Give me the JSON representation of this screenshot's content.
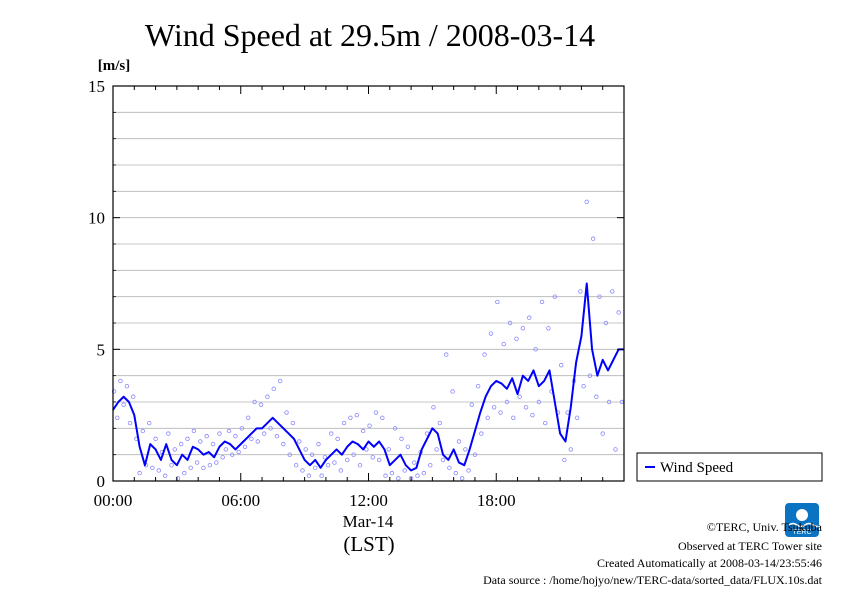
{
  "chart_data": {
    "type": "scatter",
    "title": "Wind Speed at 29.5m / 2008-03-14",
    "ylabel": "[m/s]",
    "xlabel": "(LST)",
    "x_date_label": "Mar-14",
    "ylim": [
      0,
      15
    ],
    "y_ticks": [
      "0",
      "5",
      "10",
      "15"
    ],
    "x_ticks": [
      "00:00",
      "06:00",
      "12:00",
      "18:00"
    ],
    "x_tick_hours": [
      0,
      6,
      12,
      18
    ],
    "xlim_hours": [
      0,
      24
    ],
    "grid": "horizontal",
    "legend": "bottom-right outside plot",
    "series": [
      {
        "name": "Wind Speed",
        "kind": "line",
        "color": "#0000ff",
        "x_hours": [
          0.0,
          0.25,
          0.5,
          0.75,
          1.0,
          1.25,
          1.5,
          1.75,
          2.0,
          2.25,
          2.5,
          2.75,
          3.0,
          3.25,
          3.5,
          3.75,
          4.0,
          4.25,
          4.5,
          4.75,
          5.0,
          5.25,
          5.5,
          5.75,
          6.0,
          6.25,
          6.5,
          6.75,
          7.0,
          7.25,
          7.5,
          7.75,
          8.0,
          8.25,
          8.5,
          8.75,
          9.0,
          9.25,
          9.5,
          9.75,
          10.0,
          10.25,
          10.5,
          10.75,
          11.0,
          11.25,
          11.5,
          11.75,
          12.0,
          12.25,
          12.5,
          12.75,
          13.0,
          13.25,
          13.5,
          13.75,
          14.0,
          14.25,
          14.5,
          14.75,
          15.0,
          15.25,
          15.5,
          15.75,
          16.0,
          16.25,
          16.5,
          16.75,
          17.0,
          17.25,
          17.5,
          17.75,
          18.0,
          18.25,
          18.5,
          18.75,
          19.0,
          19.25,
          19.5,
          19.75,
          20.0,
          20.25,
          20.5,
          20.75,
          21.0,
          21.25,
          21.5,
          21.75,
          22.0,
          22.25,
          22.5,
          22.75,
          23.0,
          23.25,
          23.5,
          23.75,
          24.0
        ],
        "values": [
          2.7,
          3.0,
          3.2,
          3.0,
          2.5,
          1.3,
          0.6,
          1.4,
          1.2,
          0.8,
          1.4,
          0.8,
          0.6,
          1.0,
          0.8,
          1.3,
          1.2,
          1.0,
          1.1,
          0.9,
          1.3,
          1.5,
          1.4,
          1.2,
          1.4,
          1.6,
          1.8,
          2.0,
          2.0,
          2.2,
          2.4,
          2.2,
          2.0,
          1.8,
          1.6,
          1.2,
          0.8,
          0.6,
          0.8,
          0.5,
          0.8,
          1.0,
          1.2,
          1.0,
          1.3,
          1.5,
          1.4,
          1.2,
          1.5,
          1.3,
          1.5,
          1.2,
          0.6,
          0.8,
          1.0,
          0.6,
          0.4,
          0.5,
          1.2,
          1.6,
          2.0,
          1.8,
          1.0,
          0.8,
          1.2,
          0.7,
          0.6,
          1.2,
          1.9,
          2.6,
          3.2,
          3.6,
          3.8,
          3.7,
          3.5,
          3.9,
          3.3,
          4.0,
          3.8,
          4.2,
          3.6,
          3.8,
          4.2,
          3.0,
          1.8,
          1.5,
          2.8,
          4.5,
          5.5,
          7.5,
          5.0,
          4.0,
          4.6,
          4.2,
          4.6,
          5.0,
          5.0
        ]
      },
      {
        "name": "",
        "kind": "scatter",
        "color": "#8888ff",
        "x_hours": [
          0.05,
          0.2,
          0.35,
          0.5,
          0.65,
          0.8,
          0.95,
          1.1,
          1.25,
          1.4,
          1.55,
          1.7,
          1.85,
          2.0,
          2.15,
          2.3,
          2.45,
          2.6,
          2.75,
          2.9,
          3.05,
          3.2,
          3.35,
          3.5,
          3.65,
          3.8,
          3.95,
          4.1,
          4.25,
          4.4,
          4.55,
          4.7,
          4.85,
          5.0,
          5.15,
          5.3,
          5.45,
          5.6,
          5.75,
          5.9,
          6.05,
          6.2,
          6.35,
          6.5,
          6.65,
          6.8,
          6.95,
          7.1,
          7.25,
          7.4,
          7.55,
          7.7,
          7.85,
          8.0,
          8.15,
          8.3,
          8.45,
          8.6,
          8.75,
          8.9,
          9.05,
          9.2,
          9.35,
          9.5,
          9.65,
          9.8,
          9.95,
          10.1,
          10.25,
          10.4,
          10.55,
          10.7,
          10.85,
          11.0,
          11.15,
          11.3,
          11.45,
          11.6,
          11.75,
          11.9,
          12.05,
          12.2,
          12.35,
          12.5,
          12.65,
          12.8,
          12.95,
          13.1,
          13.25,
          13.4,
          13.55,
          13.7,
          13.85,
          14.0,
          14.15,
          14.3,
          14.45,
          14.6,
          14.75,
          14.9,
          15.05,
          15.2,
          15.35,
          15.5,
          15.65,
          15.8,
          15.95,
          16.1,
          16.25,
          16.4,
          16.55,
          16.7,
          16.85,
          17.0,
          17.15,
          17.3,
          17.45,
          17.6,
          17.75,
          17.9,
          18.05,
          18.2,
          18.35,
          18.5,
          18.65,
          18.8,
          18.95,
          19.1,
          19.25,
          19.4,
          19.55,
          19.7,
          19.85,
          20.0,
          20.15,
          20.3,
          20.45,
          20.6,
          20.75,
          20.9,
          21.05,
          21.2,
          21.35,
          21.5,
          21.65,
          21.8,
          21.95,
          22.1,
          22.25,
          22.4,
          22.55,
          22.7,
          22.85,
          23.0,
          23.15,
          23.3,
          23.45,
          23.6,
          23.75,
          23.9
        ],
        "values": [
          3.4,
          2.4,
          3.8,
          2.9,
          3.6,
          2.2,
          3.2,
          1.6,
          0.3,
          1.9,
          0.6,
          2.2,
          0.5,
          1.6,
          0.4,
          1.1,
          0.2,
          1.8,
          0.6,
          1.2,
          0.1,
          1.4,
          0.3,
          1.6,
          0.5,
          1.9,
          0.7,
          1.5,
          0.5,
          1.7,
          0.6,
          1.4,
          0.7,
          1.8,
          0.9,
          1.2,
          1.9,
          1.0,
          1.7,
          1.1,
          2.0,
          1.3,
          2.4,
          1.6,
          3.0,
          1.5,
          2.9,
          1.8,
          3.2,
          2.0,
          3.5,
          1.7,
          3.8,
          1.4,
          2.6,
          1.0,
          2.2,
          0.6,
          1.5,
          0.4,
          1.2,
          0.2,
          1.0,
          0.5,
          1.4,
          0.2,
          0.9,
          0.6,
          1.8,
          0.7,
          1.6,
          0.4,
          2.2,
          0.8,
          2.4,
          1.0,
          2.5,
          0.6,
          1.9,
          1.2,
          2.1,
          0.9,
          2.6,
          0.8,
          2.4,
          0.2,
          1.2,
          0.3,
          2.0,
          0.1,
          1.6,
          0.4,
          1.3,
          0.1,
          0.7,
          0.2,
          1.1,
          0.3,
          1.8,
          0.6,
          2.8,
          1.2,
          2.2,
          0.8,
          4.8,
          0.5,
          3.4,
          0.3,
          1.5,
          0.1,
          1.2,
          0.4,
          2.9,
          1.0,
          3.6,
          1.8,
          4.8,
          2.4,
          5.6,
          2.8,
          6.8,
          2.6,
          5.2,
          3.0,
          6.0,
          2.4,
          5.4,
          3.2,
          5.8,
          2.8,
          6.2,
          2.5,
          5.0,
          3.0,
          6.8,
          2.2,
          5.8,
          3.4,
          7.0,
          2.6,
          4.4,
          0.8,
          2.6,
          1.2,
          3.8,
          2.4,
          7.2,
          3.6,
          10.6,
          4.0,
          9.2,
          3.2,
          7.0,
          1.8,
          6.0,
          3.0,
          7.2,
          1.2,
          6.4,
          3.0
        ]
      }
    ]
  },
  "footer": {
    "copyright": "©TERC, Univ. Tsukuba",
    "observed": "Observed at TERC Tower site",
    "created": "Created Automatically at 2008-03-14/23:55:46",
    "source": "Data source : /home/hojyo/new/TERC-data/sorted_data/FLUX.10s.dat"
  },
  "logo": {
    "text": "TERC",
    "color": "#0a74c2"
  }
}
